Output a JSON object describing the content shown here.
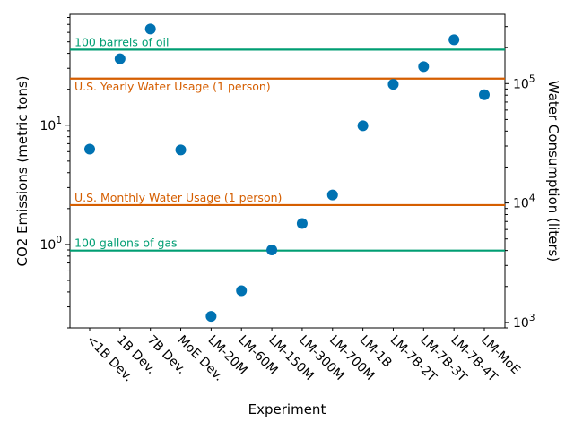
{
  "chart_data": {
    "type": "scatter",
    "xlabel": "Experiment",
    "ylabel": "CO2 Emissions (metric tons)",
    "y2label": "Water Consumption (liters)",
    "y_scale": "log",
    "y2_scale": "log",
    "ylim": [
      0.2,
      85
    ],
    "y2lim": [
      900,
      380000
    ],
    "y_ticks": [
      {
        "value": 1,
        "label": "10^0"
      },
      {
        "value": 10,
        "label": "10^1"
      }
    ],
    "y2_ticks": [
      {
        "value": 1000,
        "label": "10^3"
      },
      {
        "value": 10000,
        "label": "10^4"
      },
      {
        "value": 100000,
        "label": "10^5"
      }
    ],
    "categories": [
      "<1B Dev.",
      "1B Dev.",
      "7B Dev.",
      "MoE Dev.",
      "LM-20M",
      "LM-60M",
      "LM-150M",
      "LM-300M",
      "LM-700M",
      "LM-1B",
      "LM-7B-2T",
      "LM-7B-3T",
      "LM-7B-4T",
      "LM-MoE"
    ],
    "series": [
      {
        "color": "#0072B2",
        "values": [
          6.3,
          36,
          64,
          6.2,
          0.25,
          0.41,
          0.9,
          1.5,
          2.6,
          9.9,
          22,
          31,
          52,
          18
        ]
      }
    ],
    "reference_lines": [
      {
        "label": "100 barrels of oil",
        "axis": "left",
        "value": 43,
        "color": "#009E73"
      },
      {
        "label": "U.S. Yearly Water Usage (1 person)",
        "axis": "right",
        "value": 110000,
        "color": "#D55E00"
      },
      {
        "label": "U.S. Monthly Water Usage (1 person)",
        "axis": "right",
        "value": 9600,
        "color": "#D55E00"
      },
      {
        "label": "100 gallons of gas",
        "axis": "left",
        "value": 0.89,
        "color": "#009E73"
      }
    ],
    "grid": false,
    "legend": "none"
  }
}
